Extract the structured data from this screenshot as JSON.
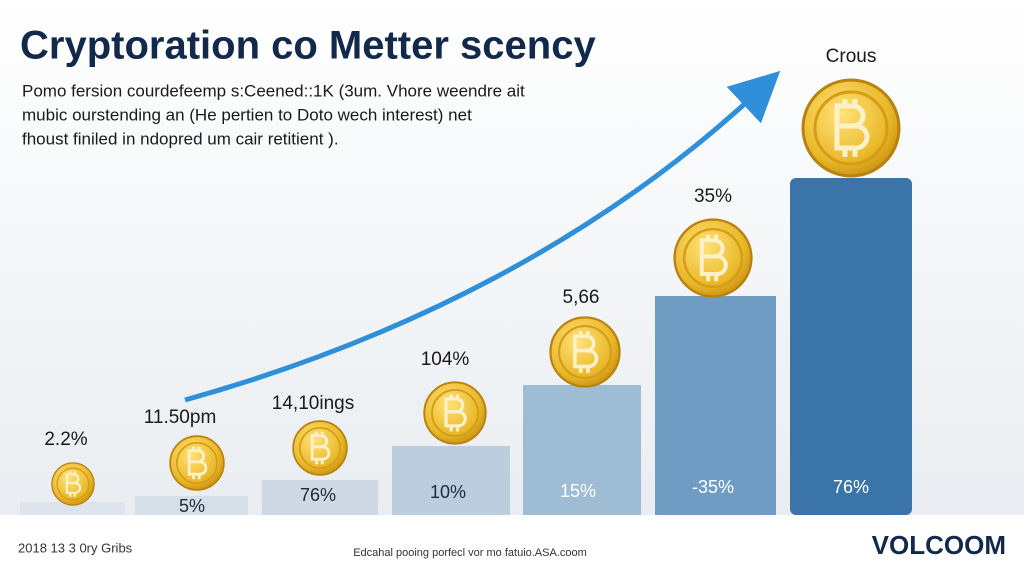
{
  "header": {
    "title": "Cryptoration co Metter scency",
    "description": [
      "Pomo fersion courdefeemp s:Ceened::1K (3um. Vhore weendre ait",
      "mubic ourstending an (He pertien to Doto wech interest) net",
      "fhoust finiled in ndopred um cair retitient )."
    ]
  },
  "bars": [
    {
      "top_label": "2.2%"
    },
    {
      "top_label": "11.50pm",
      "inner_label": "5%"
    },
    {
      "top_label": "14,10ings",
      "inner_label": "76%"
    },
    {
      "top_label": "104%",
      "inner_label": "10%"
    },
    {
      "top_label": "5,66",
      "inner_label": "15%"
    },
    {
      "top_label": "35%",
      "inner_label": "-35%"
    },
    {
      "top_label": "Crous",
      "inner_label": "76%"
    }
  ],
  "footer": {
    "left": "2018 13 3 0ry Gribs",
    "center": "Edcahal pooing porfecl vor mo fatuio.ASA.coom",
    "brand": "VOLCOOM"
  }
}
